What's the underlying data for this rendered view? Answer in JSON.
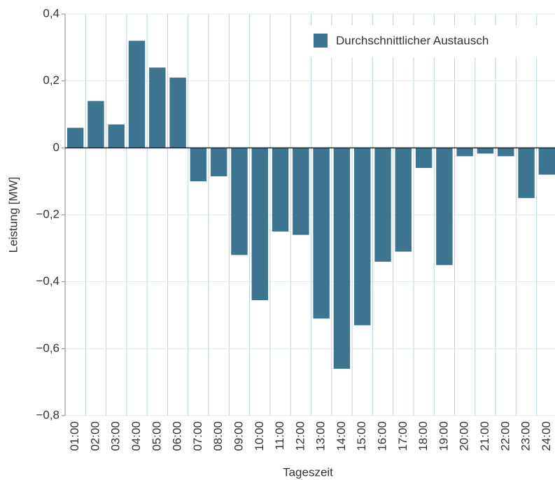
{
  "chart_data": {
    "type": "bar",
    "ylabel": "Leistung [MW]",
    "xlabel": "Tageszeit",
    "categories": [
      "01:00",
      "02:00",
      "03:00",
      "04:00",
      "05:00",
      "06:00",
      "07:00",
      "08:00",
      "09:00",
      "10:00",
      "11:00",
      "12:00",
      "13:00",
      "14:00",
      "15:00",
      "16:00",
      "17:00",
      "18:00",
      "19:00",
      "20:00",
      "21:00",
      "22:00",
      "23:00",
      "24:00"
    ],
    "series": [
      {
        "name": "Durchschnittlicher Austausch",
        "color": "#3d7590",
        "values": [
          0.06,
          0.14,
          0.07,
          0.32,
          0.24,
          0.21,
          -0.1,
          -0.085,
          -0.32,
          -0.455,
          -0.25,
          -0.26,
          -0.51,
          -0.66,
          -0.53,
          -0.34,
          -0.31,
          -0.06,
          -0.35,
          -0.025,
          -0.017,
          -0.025,
          -0.15,
          -0.08
        ]
      }
    ],
    "ylim": [
      -0.8,
      0.4
    ],
    "yticks": [
      {
        "value": -0.8,
        "label": "−0,8"
      },
      {
        "value": -0.6,
        "label": "−0,6"
      },
      {
        "value": -0.4,
        "label": "−0,4"
      },
      {
        "value": -0.2,
        "label": "−0,2"
      },
      0,
      {
        "value": 0.2,
        "label": "0,2"
      },
      {
        "value": 0.4,
        "label": "0,4"
      }
    ],
    "grid": true,
    "legend": "upper right"
  }
}
